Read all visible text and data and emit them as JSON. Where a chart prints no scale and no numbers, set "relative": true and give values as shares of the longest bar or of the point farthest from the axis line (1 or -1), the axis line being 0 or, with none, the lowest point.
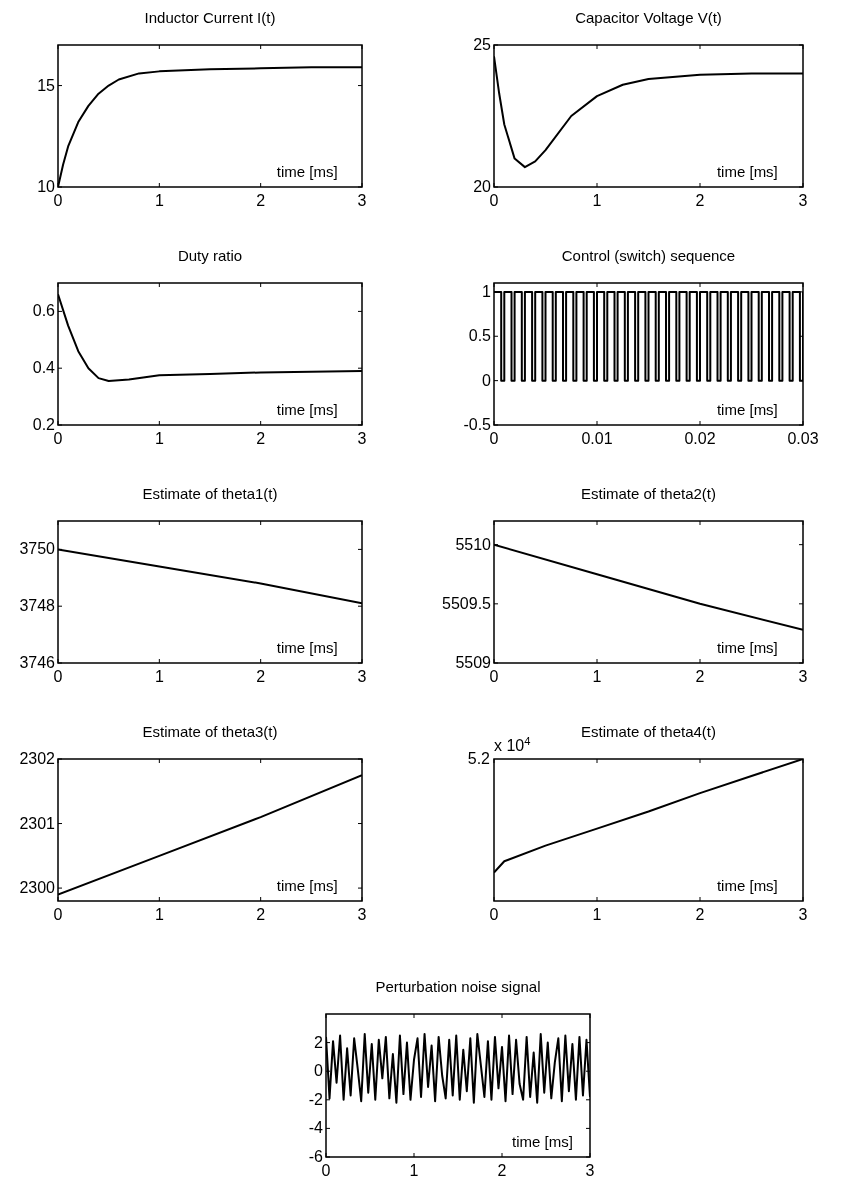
{
  "chart_data": [
    {
      "type": "line",
      "title": "Inductor Current I(t)",
      "xlabel": "time [ms]",
      "color": "#000000",
      "x": [
        0,
        0.05,
        0.1,
        0.2,
        0.3,
        0.4,
        0.5,
        0.6,
        0.8,
        1,
        1.25,
        1.5,
        2,
        2.5,
        3
      ],
      "values": [
        10,
        11.1,
        12,
        13.2,
        14,
        14.6,
        15,
        15.3,
        15.6,
        15.7,
        15.75,
        15.8,
        15.85,
        15.9,
        15.9
      ],
      "xlim": [
        0,
        3
      ],
      "xticks": [
        0,
        1,
        2,
        3
      ],
      "ylim": [
        10,
        17
      ],
      "yticks": [
        10,
        15
      ]
    },
    {
      "type": "line",
      "title": "Capacitor Voltage V(t)",
      "xlabel": "time [ms]",
      "color": "#000000",
      "x": [
        0,
        0.05,
        0.1,
        0.2,
        0.3,
        0.4,
        0.5,
        0.75,
        1,
        1.25,
        1.5,
        2,
        2.5,
        3
      ],
      "values": [
        24.6,
        23.3,
        22.2,
        21,
        20.7,
        20.9,
        21.3,
        22.5,
        23.2,
        23.6,
        23.8,
        23.95,
        24,
        24
      ],
      "xlim": [
        0,
        3
      ],
      "xticks": [
        0,
        1,
        2,
        3
      ],
      "ylim": [
        20,
        25
      ],
      "yticks": [
        20,
        25
      ]
    },
    {
      "type": "line",
      "title": "Duty ratio",
      "xlabel": "time [ms]",
      "color": "#000000",
      "x": [
        0,
        0.1,
        0.2,
        0.3,
        0.4,
        0.5,
        0.7,
        1,
        1.5,
        2,
        3
      ],
      "values": [
        0.66,
        0.55,
        0.46,
        0.4,
        0.365,
        0.355,
        0.36,
        0.375,
        0.38,
        0.385,
        0.39
      ],
      "xlim": [
        0,
        3
      ],
      "xticks": [
        0,
        1,
        2,
        3
      ],
      "ylim": [
        0.2,
        0.7
      ],
      "yticks": [
        0.2,
        0.4,
        0.6
      ]
    },
    {
      "type": "step",
      "title": "Control (switch) sequence",
      "xlabel": "time [ms]",
      "color": "#000000",
      "x": [
        0,
        0.0007,
        0.001,
        0.0017,
        0.002,
        0.0027,
        0.003,
        0.0037,
        0.004,
        0.0047,
        0.005,
        0.0057,
        0.006,
        0.0067,
        0.007,
        0.0077,
        0.008,
        0.0087,
        0.009,
        0.0097,
        0.01,
        0.0107,
        0.011,
        0.0117,
        0.012,
        0.0127,
        0.013,
        0.0137,
        0.014,
        0.0147,
        0.015,
        0.0157,
        0.016,
        0.0167,
        0.017,
        0.0177,
        0.018,
        0.0187,
        0.019,
        0.0197,
        0.02,
        0.0207,
        0.021,
        0.0217,
        0.022,
        0.0227,
        0.023,
        0.0237,
        0.024,
        0.0247,
        0.025,
        0.0257,
        0.026,
        0.0267,
        0.027,
        0.0277,
        0.028,
        0.0287,
        0.029,
        0.0297,
        0.03
      ],
      "values": [
        1,
        0,
        1,
        0,
        1,
        0,
        1,
        0,
        1,
        0,
        1,
        0,
        1,
        0,
        1,
        0,
        1,
        0,
        1,
        0,
        1,
        0,
        1,
        0,
        1,
        0,
        1,
        0,
        1,
        0,
        1,
        0,
        1,
        0,
        1,
        0,
        1,
        0,
        1,
        0,
        1,
        0,
        1,
        0,
        1,
        0,
        1,
        0,
        1,
        0,
        1,
        0,
        1,
        0,
        1,
        0,
        1,
        0,
        1,
        0,
        1
      ],
      "xlim": [
        0,
        0.03
      ],
      "xticks": [
        0,
        0.01,
        0.02,
        0.03
      ],
      "ylim": [
        -0.5,
        1.1
      ],
      "yticks": [
        -0.5,
        0,
        0.5,
        1
      ]
    },
    {
      "type": "line",
      "title": "Estimate of theta1(t)",
      "xlabel": "time [ms]",
      "color": "#000000",
      "x": [
        0,
        1,
        2,
        3
      ],
      "values": [
        3750,
        3749.4,
        3748.8,
        3748.1
      ],
      "xlim": [
        0,
        3
      ],
      "xticks": [
        0,
        1,
        2,
        3
      ],
      "ylim": [
        3746,
        3751
      ],
      "yticks": [
        3746,
        3748,
        3750
      ]
    },
    {
      "type": "line",
      "title": "Estimate of theta2(t)",
      "xlabel": "time [ms]",
      "color": "#000000",
      "x": [
        0,
        1,
        2,
        3
      ],
      "values": [
        5510,
        5509.75,
        5509.5,
        5509.28
      ],
      "xlim": [
        0,
        3
      ],
      "xticks": [
        0,
        1,
        2,
        3
      ],
      "ylim": [
        5509,
        5510.2
      ],
      "yticks": [
        5509,
        5509.5,
        5510
      ]
    },
    {
      "type": "line",
      "title": "Estimate of theta3(t)",
      "xlabel": "time [ms]",
      "color": "#000000",
      "x": [
        0,
        1,
        2,
        3
      ],
      "values": [
        2299.9,
        2300.5,
        2301.1,
        2301.75
      ],
      "xlim": [
        0,
        3
      ],
      "xticks": [
        0,
        1,
        2,
        3
      ],
      "ylim": [
        2299.8,
        2302
      ],
      "yticks": [
        2300,
        2301,
        2302
      ]
    },
    {
      "type": "line",
      "title": "Estimate of theta4(t)",
      "xlabel": "time [ms]",
      "relative": true,
      "annotations": [
        "x 10$^{4}$",
        "5.2"
      ],
      "color": "#000000",
      "x": [
        0,
        0.1,
        0.5,
        1,
        1.5,
        2,
        2.5,
        3
      ],
      "values": [
        0.2,
        0.28,
        0.39,
        0.51,
        0.63,
        0.76,
        0.88,
        1
      ],
      "xlim": [
        0,
        3
      ],
      "xticks": [
        0,
        1,
        2,
        3
      ]
    },
    {
      "type": "line",
      "title": "Perturbation noise signal",
      "xlabel": "time [ms]",
      "color": "#000000",
      "x": [
        0,
        0.04,
        0.08,
        0.12,
        0.16,
        0.2,
        0.24,
        0.28,
        0.32,
        0.36,
        0.4,
        0.44,
        0.48,
        0.52,
        0.56,
        0.6,
        0.64,
        0.68,
        0.72,
        0.76,
        0.8,
        0.84,
        0.88,
        0.92,
        0.96,
        1,
        1.04,
        1.08,
        1.12,
        1.16,
        1.2,
        1.24,
        1.28,
        1.32,
        1.36,
        1.4,
        1.44,
        1.48,
        1.52,
        1.56,
        1.6,
        1.64,
        1.68,
        1.72,
        1.76,
        1.8,
        1.84,
        1.88,
        1.92,
        1.96,
        2,
        2.04,
        2.08,
        2.12,
        2.16,
        2.2,
        2.24,
        2.28,
        2.32,
        2.36,
        2.4,
        2.44,
        2.48,
        2.52,
        2.56,
        2.6,
        2.64,
        2.68,
        2.72,
        2.76,
        2.8,
        2.84,
        2.88,
        2.92,
        2.96,
        3
      ],
      "values": [
        2.4,
        -1.9,
        2.1,
        -0.8,
        2.5,
        -2,
        1.6,
        -1.7,
        2.3,
        0.2,
        -2.1,
        2.6,
        -1.5,
        1.9,
        -2,
        2.2,
        -0.5,
        2.4,
        -1.9,
        1.2,
        -2.2,
        2.5,
        -1.6,
        2,
        -2,
        0.8,
        2.3,
        -1.8,
        2.6,
        -1.1,
        1.8,
        -2.1,
        2.4,
        -0.3,
        -1.9,
        2.2,
        -1.7,
        2.5,
        -2,
        1.5,
        -1.4,
        2.3,
        -2.2,
        2.6,
        0.4,
        -1.8,
        2.1,
        -2,
        2.4,
        -1.2,
        1.7,
        -2.1,
        2.5,
        -1.6,
        2.2,
        -0.9,
        -2,
        2.4,
        -1.8,
        1.3,
        -2.2,
        2.6,
        -1.5,
        2,
        -1.9,
        0.6,
        2.3,
        -2.1,
        2.5,
        -1.4,
        1.9,
        -2,
        2.4,
        -1.7,
        2.2,
        -1.8
      ],
      "xlim": [
        0,
        3
      ],
      "xticks": [
        0,
        1,
        2,
        3
      ],
      "ylim": [
        -6,
        4
      ],
      "yticks": [
        -6,
        -4,
        -2,
        0,
        2
      ]
    }
  ]
}
